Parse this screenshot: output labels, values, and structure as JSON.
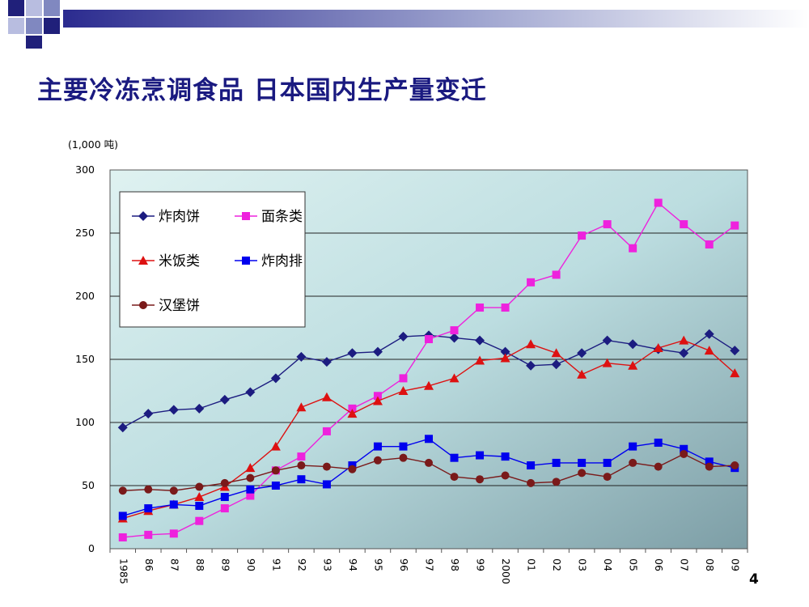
{
  "slide": {
    "title": "主要冷冻烹调食品 日本国内生产量变迁",
    "page_number": "4"
  },
  "chart_data": {
    "type": "line",
    "unit_label": "(1,000 吨)",
    "x": [
      "1985",
      "86",
      "87",
      "88",
      "89",
      "90",
      "91",
      "92",
      "93",
      "94",
      "95",
      "96",
      "97",
      "98",
      "99",
      "2000",
      "01",
      "02",
      "03",
      "04",
      "05",
      "06",
      "07",
      "08",
      "09"
    ],
    "ylim": [
      0,
      300
    ],
    "yticks": [
      0,
      50,
      100,
      150,
      200,
      250,
      300
    ],
    "grid": true,
    "legend_position": "top-left",
    "series": [
      {
        "name": "炸肉饼",
        "color": "#1c1c80",
        "marker": "diamond",
        "values": [
          96,
          107,
          110,
          111,
          118,
          124,
          135,
          152,
          148,
          155,
          156,
          168,
          169,
          167,
          165,
          156,
          145,
          146,
          155,
          165,
          162,
          158,
          155,
          170,
          157
        ]
      },
      {
        "name": "面条类",
        "color": "#ee22dd",
        "marker": "square",
        "values": [
          9,
          11,
          12,
          22,
          32,
          42,
          62,
          73,
          93,
          111,
          121,
          135,
          166,
          173,
          191,
          191,
          211,
          217,
          248,
          257,
          238,
          274,
          257,
          241,
          256
        ]
      },
      {
        "name": "米饭类",
        "color": "#dd1111",
        "marker": "triangle",
        "values": [
          24,
          30,
          35,
          41,
          49,
          64,
          81,
          112,
          120,
          107,
          117,
          125,
          129,
          135,
          149,
          151,
          162,
          155,
          138,
          147,
          145,
          159,
          165,
          157,
          139
        ]
      },
      {
        "name": "炸肉排",
        "color": "#0000ee",
        "marker": "square",
        "values": [
          26,
          32,
          35,
          34,
          41,
          47,
          50,
          55,
          51,
          66,
          81,
          81,
          87,
          72,
          74,
          73,
          66,
          68,
          68,
          68,
          81,
          84,
          79,
          69,
          64
        ]
      },
      {
        "name": "汉堡饼",
        "color": "#7a1a1a",
        "marker": "circle",
        "values": [
          46,
          47,
          46,
          49,
          52,
          56,
          62,
          66,
          65,
          63,
          70,
          72,
          68,
          57,
          55,
          58,
          52,
          53,
          60,
          57,
          68,
          65,
          75,
          65,
          66
        ]
      }
    ]
  }
}
